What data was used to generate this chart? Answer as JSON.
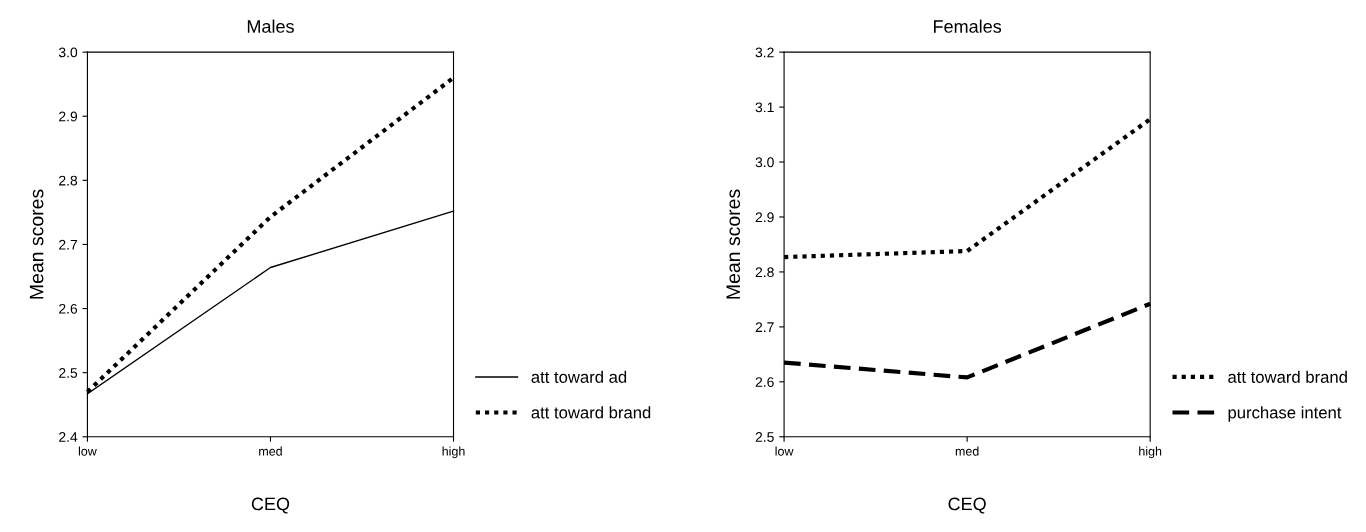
{
  "chart_data": [
    {
      "type": "line",
      "title": "Males",
      "xlabel": "CEQ",
      "ylabel": "Mean scores",
      "categories": [
        "low",
        "med",
        "high"
      ],
      "ylim": [
        2.4,
        3.0
      ],
      "yticks": [
        2.4,
        2.5,
        2.6,
        2.7,
        2.8,
        2.9,
        {
          "value": 3,
          "label": "3.0"
        }
      ],
      "grid": false,
      "legend": "bottom right",
      "marker": "none",
      "series": [
        {
          "name": "att toward ad",
          "color": "#000000",
          "line_style": "solid",
          "values": [
            2.467,
            2.664,
            2.752
          ]
        },
        {
          "name": "att toward brand",
          "color": "#000000",
          "line_style": "dotted",
          "values": [
            2.47,
            2.743,
            2.96
          ]
        }
      ]
    },
    {
      "type": "line",
      "title": "Females",
      "xlabel": "CEQ",
      "ylabel": "Mean scores",
      "categories": [
        "low",
        "med",
        "high"
      ],
      "ylim": [
        2.5,
        3.2
      ],
      "yticks": [
        2.5,
        2.6,
        2.7,
        2.8,
        2.9,
        {
          "value": 3,
          "label": "3.0"
        },
        3.1,
        3.2
      ],
      "grid": false,
      "legend": "bottom right",
      "marker": "none",
      "series": [
        {
          "name": "att toward brand",
          "color": "#000000",
          "line_style": "dotted",
          "values": [
            2.827,
            2.838,
            3.078
          ]
        },
        {
          "name": "purchase intent",
          "color": "#000000",
          "line_style": "dashed",
          "values": [
            2.635,
            2.608,
            2.742
          ]
        }
      ]
    }
  ]
}
